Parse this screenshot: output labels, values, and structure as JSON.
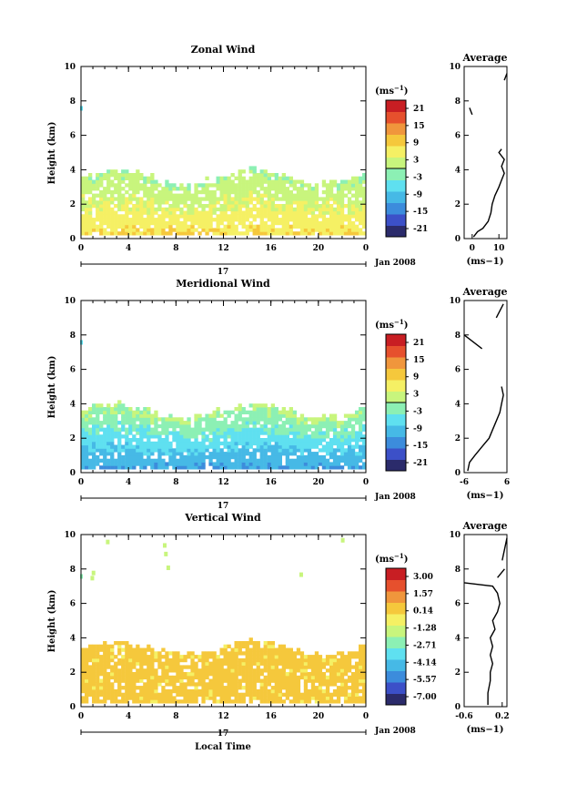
{
  "colors": {
    "zonal": [
      "#2b2b6b",
      "#3c50c8",
      "#3c8cdc",
      "#46b9e6",
      "#5fe0f0",
      "#8cf0b4",
      "#c8f57d",
      "#f5f064",
      "#f5c83c",
      "#f0963c",
      "#e6502d",
      "#c81e23"
    ],
    "axis": "#000000"
  },
  "shared": {
    "x_ticks": [
      "0",
      "4",
      "8",
      "12",
      "16",
      "20",
      "0"
    ],
    "y_ticks": [
      "0",
      "2",
      "4",
      "6",
      "8",
      "10"
    ],
    "date_label": "17",
    "date_right": "Jan 2008",
    "y_label": "Height (km)",
    "unit_label": "(ms",
    "unit_sup": "−1",
    "unit_close": ")",
    "avg_title": "Average",
    "x_label": "Local Time"
  },
  "chart_data": [
    {
      "type": "heatmap",
      "title": "Zonal Wind",
      "ylabel": "Height (km)",
      "ylim": [
        0,
        10
      ],
      "x_range_hours": [
        0,
        24
      ],
      "colorbar_unit": "(ms−1)",
      "colorbar_ticks": [
        "21",
        "15",
        "9",
        "3",
        "-3",
        "-9",
        "-15",
        "-21"
      ],
      "colorbar_range": [
        -24,
        24
      ],
      "field": {
        "base_value": 8,
        "top_value": 0,
        "bottom_km": 0.2,
        "top_km": 3.5
      },
      "average_profile": {
        "xlim": [
          -3,
          13
        ],
        "xticks": [
          "0",
          "10"
        ],
        "xlabel": "(ms−1)",
        "points": [
          [
            0.5,
            0.1
          ],
          [
            2,
            0.4
          ],
          [
            4,
            0.6
          ],
          [
            6,
            1.0
          ],
          [
            7,
            1.5
          ],
          [
            7.5,
            2.0
          ],
          [
            8.5,
            2.5
          ],
          [
            10,
            3.0
          ],
          [
            11,
            3.4
          ],
          [
            12,
            3.8
          ],
          [
            11,
            4.2
          ],
          [
            12,
            4.6
          ],
          [
            10,
            5.0
          ],
          [
            11,
            5.2
          ]
        ],
        "upper_segment": [
          [
            0,
            7.2
          ],
          [
            -1,
            7.6
          ]
        ],
        "top_segment": [
          [
            12,
            9.2
          ],
          [
            13,
            9.6
          ]
        ]
      }
    },
    {
      "type": "heatmap",
      "title": "Meridional Wind",
      "ylabel": "Height (km)",
      "ylim": [
        0,
        10
      ],
      "x_range_hours": [
        0,
        24
      ],
      "colorbar_unit": "(ms−1)",
      "colorbar_ticks": [
        "21",
        "15",
        "9",
        "3",
        "-3",
        "-9",
        "-15",
        "-21"
      ],
      "colorbar_range": [
        -24,
        24
      ],
      "field": {
        "base_value": -12,
        "top_value": 1,
        "bottom_km": 0.2,
        "top_km": 3.5
      },
      "average_profile": {
        "xlim": [
          -6,
          6
        ],
        "xticks": [
          "-6",
          "6"
        ],
        "xlabel": "(ms−1)",
        "points": [
          [
            -5,
            0.1
          ],
          [
            -4.5,
            0.6
          ],
          [
            -3,
            1.0
          ],
          [
            -1,
            1.5
          ],
          [
            1,
            2.0
          ],
          [
            2,
            2.5
          ],
          [
            3,
            3.0
          ],
          [
            4,
            3.5
          ],
          [
            4.5,
            4.0
          ],
          [
            5,
            4.5
          ],
          [
            4.5,
            5.0
          ]
        ],
        "upper_segment": [
          [
            -6,
            8.0
          ],
          [
            -1,
            7.2
          ]
        ],
        "top_segment": [
          [
            3,
            9.0
          ],
          [
            5,
            9.8
          ]
        ]
      }
    },
    {
      "type": "heatmap",
      "title": "Vertical Wind",
      "ylabel": "Height (km)",
      "xlabel": "Local Time",
      "ylim": [
        0,
        10
      ],
      "x_range_hours": [
        0,
        24
      ],
      "colorbar_unit": "(ms−1)",
      "colorbar_ticks": [
        "3.00",
        "1.57",
        "0.14",
        "-1.28",
        "-2.71",
        "-4.14",
        "-5.57",
        "-7.00"
      ],
      "colorbar_range": [
        -8.0,
        4.0
      ],
      "field": {
        "base_value": 0.3,
        "top_value": 0.3,
        "bottom_km": 0.2,
        "top_km": 3.3
      },
      "average_profile": {
        "xlim": [
          -0.6,
          0.3
        ],
        "xticks": [
          "-0.6",
          "0.2"
        ],
        "xlabel": "(ms−1)",
        "points": [
          [
            -0.1,
            0.1
          ],
          [
            -0.1,
            0.8
          ],
          [
            -0.05,
            1.5
          ],
          [
            -0.05,
            2.0
          ],
          [
            0.0,
            2.5
          ],
          [
            -0.05,
            3.0
          ],
          [
            0.0,
            3.5
          ],
          [
            -0.05,
            4.0
          ],
          [
            0.05,
            4.5
          ],
          [
            0.0,
            5.0
          ],
          [
            0.1,
            5.5
          ],
          [
            0.15,
            6.0
          ],
          [
            0.1,
            6.6
          ],
          [
            0.0,
            7.0
          ],
          [
            -0.6,
            7.2
          ]
        ],
        "upper_segment": [
          [
            0.1,
            7.5
          ],
          [
            0.25,
            8.0
          ]
        ],
        "top_segment": [
          [
            0.2,
            8.5
          ],
          [
            0.3,
            9.8
          ]
        ]
      }
    }
  ]
}
